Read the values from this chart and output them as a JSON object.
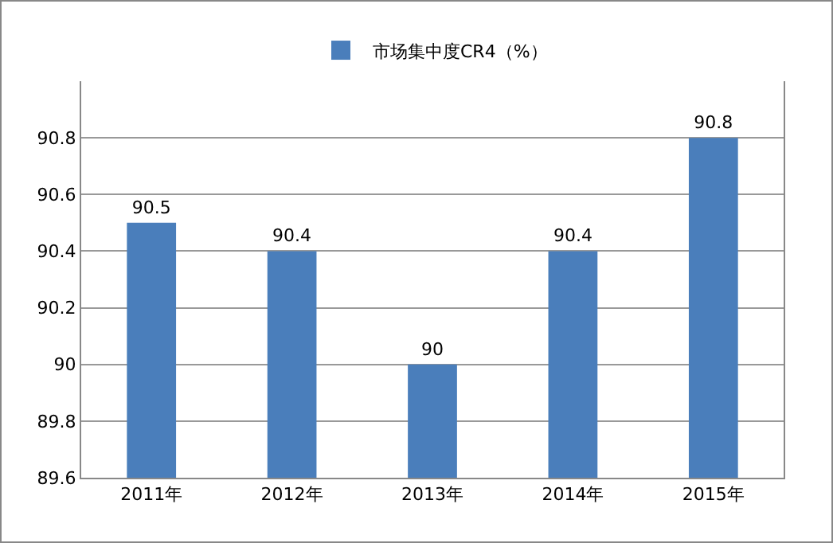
{
  "chart_data": {
    "type": "bar",
    "categories": [
      "2011年",
      "2012年",
      "2013年",
      "2014年",
      "2015年"
    ],
    "series": [
      {
        "name": "市场集中度CR4（%）",
        "color": "#4a7ebb",
        "values": [
          90.5,
          90.4,
          90,
          90.4,
          90.8
        ]
      }
    ],
    "ylim": [
      89.6,
      91.0
    ],
    "yticks": [
      89.6,
      89.8,
      90,
      90.2,
      90.4,
      90.6,
      90.8
    ],
    "grid": "y",
    "legend": "top",
    "data_labels": true
  }
}
